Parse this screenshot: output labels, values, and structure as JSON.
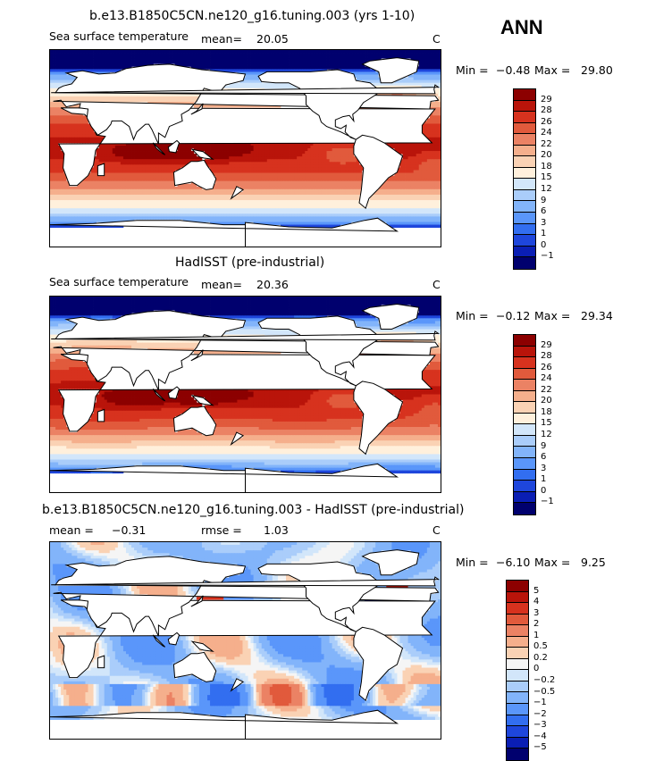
{
  "season": "ANN",
  "colors": {
    "abs": [
      "#00006e",
      "#0a1eb4",
      "#1e46dc",
      "#326ef0",
      "#5a96fa",
      "#82b4fa",
      "#aacdfa",
      "#d2e6fa",
      "#fff0dc",
      "#fad2b4",
      "#f5af8c",
      "#eb8264",
      "#e15a3c",
      "#d7321e",
      "#b9140a",
      "#8c0000"
    ],
    "diff": [
      "#00006e",
      "#0a1eb4",
      "#1e46dc",
      "#326ef0",
      "#5a96fa",
      "#82b4fa",
      "#aacdfa",
      "#d2e6fa",
      "#f5f5f5",
      "#fad2b4",
      "#f5af8c",
      "#eb8264",
      "#e15a3c",
      "#d7321e",
      "#b9140a",
      "#8c0000"
    ]
  },
  "chart_data": [
    {
      "type": "heatmap",
      "title": "b.e13.B1850C5CN.ne120_g16.tuning.003 (yrs 1-10)",
      "variable": "Sea surface temperature",
      "mean_label": "mean=",
      "mean": "20.05",
      "units": "C",
      "min_label": "Min =",
      "min": "−0.48",
      "max_label": "Max =",
      "max": "29.80",
      "levels": [
        "29",
        "28",
        "26",
        "24",
        "22",
        "20",
        "18",
        "15",
        "12",
        "9",
        "6",
        "3",
        "1",
        "0",
        "−1"
      ],
      "field": "model"
    },
    {
      "type": "heatmap",
      "title": "HadISST (pre-industrial)",
      "variable": "Sea surface temperature",
      "mean_label": "mean=",
      "mean": "20.36",
      "units": "C",
      "min_label": "Min =",
      "min": "−0.12",
      "max_label": "Max =",
      "max": "29.34",
      "levels": [
        "29",
        "28",
        "26",
        "24",
        "22",
        "20",
        "18",
        "15",
        "12",
        "9",
        "6",
        "3",
        "1",
        "0",
        "−1"
      ],
      "field": "obs"
    },
    {
      "type": "heatmap",
      "title": "b.e13.B1850C5CN.ne120_g16.tuning.003 - HadISST (pre-industrial)",
      "mean_label": "mean =",
      "mean": "−0.31",
      "rmse_label": "rmse =",
      "rmse": "1.03",
      "units": "C",
      "min_label": "Min =",
      "min": "−6.10",
      "max_label": "Max =",
      "max": "9.25",
      "levels": [
        "5",
        "4",
        "3",
        "2",
        "1",
        "0.5",
        "0.2",
        "0",
        "−0.2",
        "−0.5",
        "−1",
        "−2",
        "−3",
        "−4",
        "−5"
      ],
      "field": "diff"
    }
  ]
}
